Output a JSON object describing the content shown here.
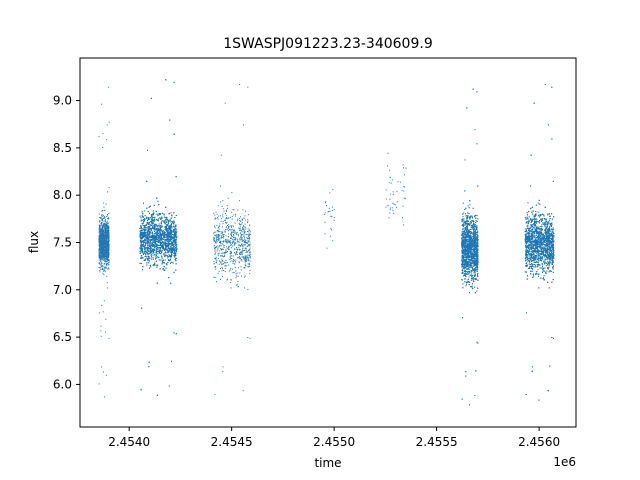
{
  "chart_data": {
    "type": "scatter",
    "title": "1SWASPJ091223.23-340609.9",
    "xlabel": "time",
    "ylabel": "flux",
    "x_offset_label": "1e6",
    "x_tick_labels": [
      "2.4540",
      "2.4545",
      "2.4550",
      "2.4555",
      "2.4560"
    ],
    "x_tick_values": [
      2454000,
      2454500,
      2455000,
      2455500,
      2456000
    ],
    "y_tick_values": [
      6.0,
      6.5,
      7.0,
      7.5,
      8.0,
      8.5,
      9.0
    ],
    "y_tick_labels": [
      "6.0",
      "6.5",
      "7.0",
      "7.5",
      "8.0",
      "8.5",
      "9.0"
    ],
    "xlim": [
      2453760,
      2456180
    ],
    "ylim": [
      5.55,
      9.45
    ],
    "grid": false,
    "marker_color": "#1f77b4",
    "clusters": [
      {
        "x_start": 2453850,
        "x_end": 2453900,
        "y_center": 7.5,
        "y_spread": 0.32,
        "n": 1200
      },
      {
        "x_start": 2454050,
        "x_end": 2454230,
        "y_center": 7.55,
        "y_spread": 0.33,
        "n": 5000
      },
      {
        "x_start": 2454410,
        "x_end": 2454590,
        "y_center": 7.5,
        "y_spread": 0.45,
        "n": 700
      },
      {
        "x_start": 2454950,
        "x_end": 2455000,
        "y_center": 7.8,
        "y_spread": 0.5,
        "n": 25
      },
      {
        "x_start": 2455250,
        "x_end": 2455350,
        "y_center": 8.0,
        "y_spread": 0.4,
        "n": 45
      },
      {
        "x_start": 2455620,
        "x_end": 2455700,
        "y_center": 7.45,
        "y_spread": 0.42,
        "n": 3500
      },
      {
        "x_start": 2455930,
        "x_end": 2456070,
        "y_center": 7.5,
        "y_spread": 0.38,
        "n": 4500
      }
    ]
  }
}
